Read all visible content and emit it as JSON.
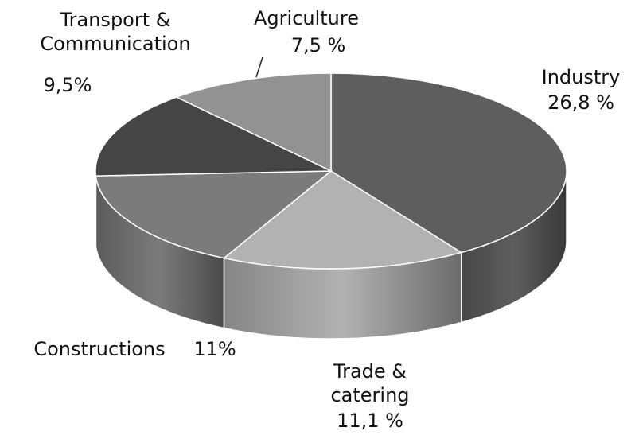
{
  "chart_data": {
    "type": "pie3d",
    "categories": [
      "Industry",
      "Trade & catering",
      "Constructions",
      "Transport & Communication",
      "Agriculture"
    ],
    "values": [
      26.8,
      11.1,
      11,
      9.5,
      7.5
    ],
    "value_labels": [
      "26,8 %",
      "11,1 %",
      "11%",
      "9,5%",
      "7,5 %"
    ],
    "colors": [
      "#5e5e5e",
      "#b2b2b2",
      "#7b7b7b",
      "#454545",
      "#929292"
    ]
  }
}
